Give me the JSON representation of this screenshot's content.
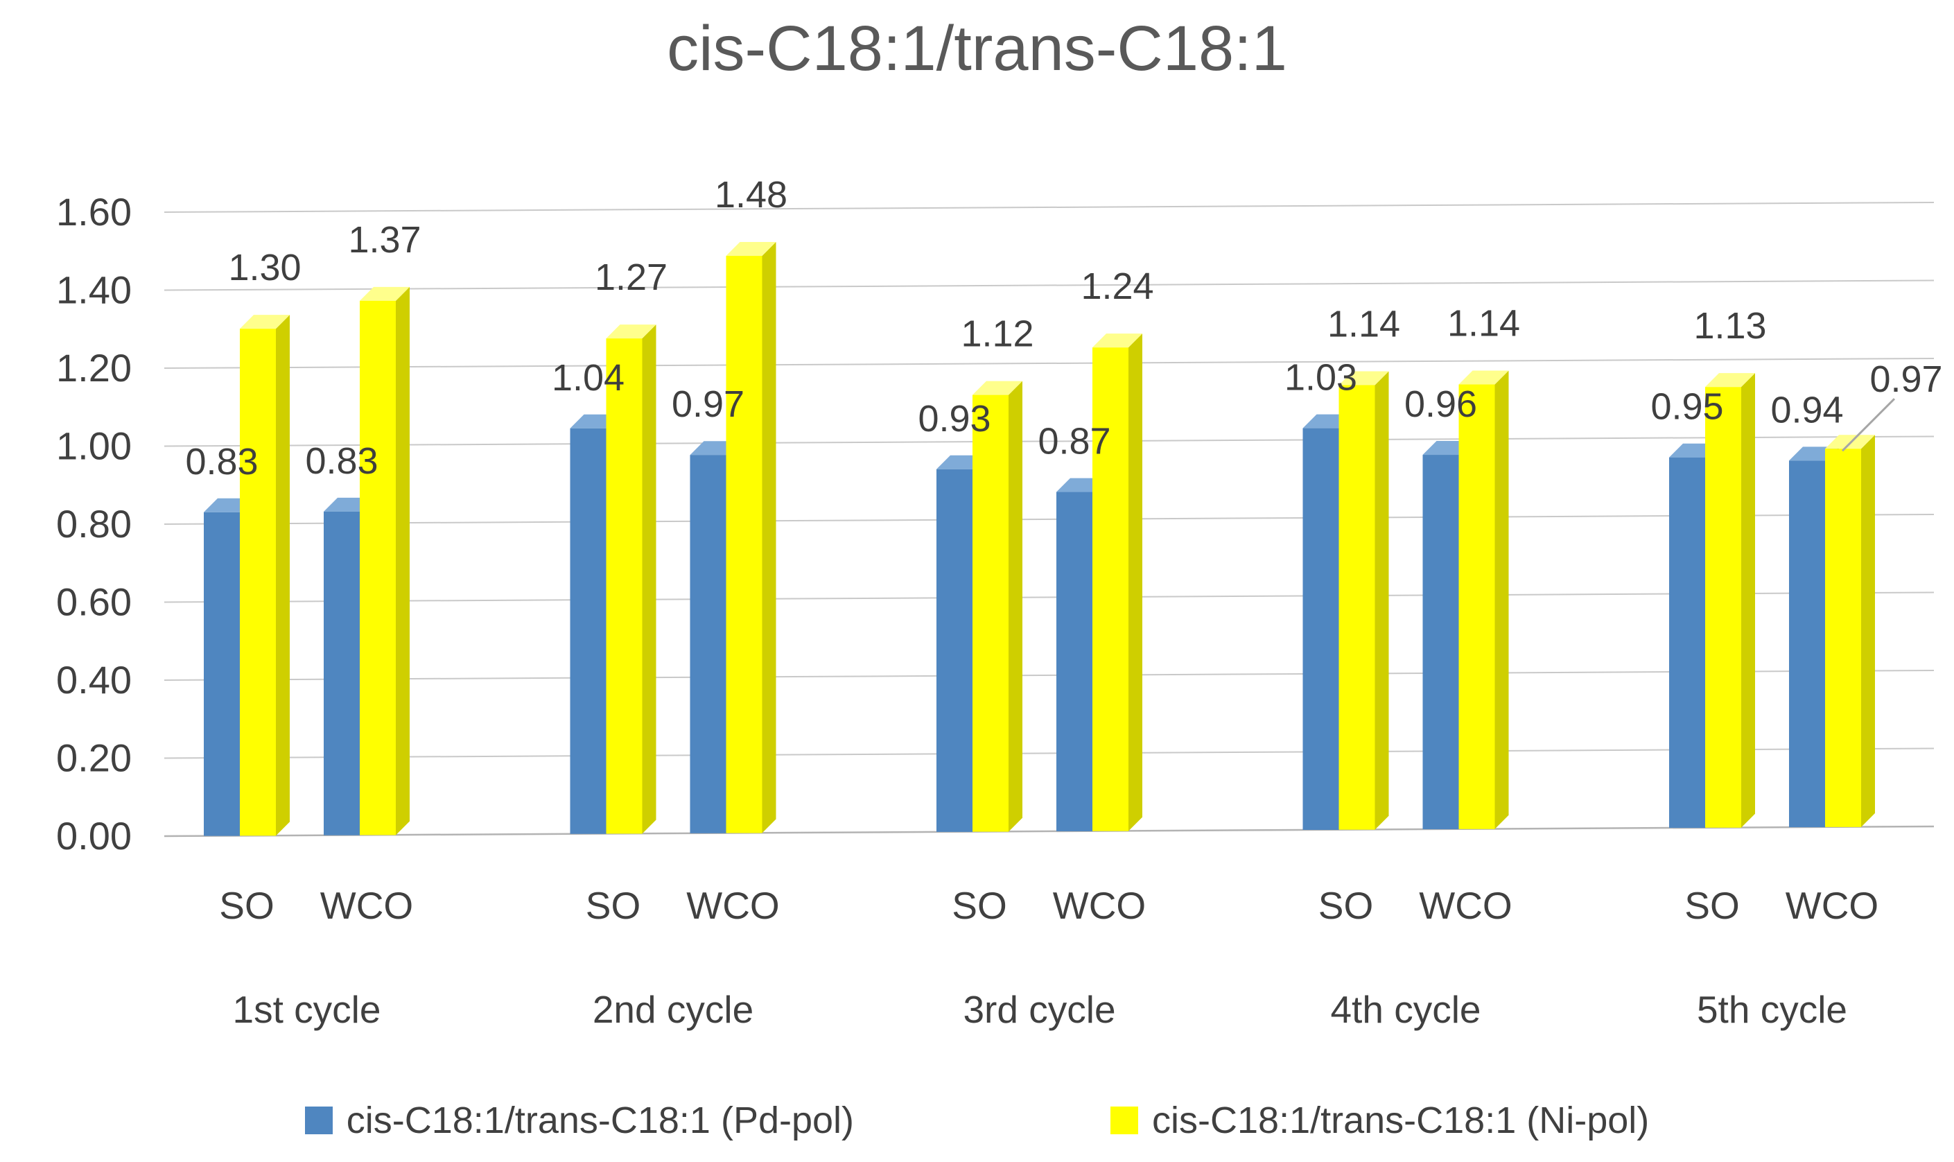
{
  "chart_data": {
    "type": "bar",
    "title": "cis-C18:1/trans-C18:1",
    "groups": [
      "1st cycle",
      "2nd cycle",
      "3rd cycle",
      "4th cycle",
      "5th cycle"
    ],
    "subgroups": [
      "SO",
      "WCO"
    ],
    "series": [
      {
        "name": "cis-C18:1/trans-C18:1 (Pd-pol)",
        "face": "#4f86c0",
        "top": "#7fabd8",
        "side": "#2f5d8c",
        "values": [
          [
            0.83,
            0.83
          ],
          [
            1.04,
            0.97
          ],
          [
            0.93,
            0.87
          ],
          [
            1.03,
            0.96
          ],
          [
            0.95,
            0.94
          ]
        ]
      },
      {
        "name": "cis-C18:1/trans-C18:1 (Ni-pol)",
        "face": "#ffff00",
        "top": "#ffff8c",
        "side": "#cfcf00",
        "values": [
          [
            1.3,
            1.37
          ],
          [
            1.27,
            1.48
          ],
          [
            1.12,
            1.24
          ],
          [
            1.14,
            1.14
          ],
          [
            1.13,
            0.97
          ]
        ]
      }
    ],
    "ylim": [
      0,
      1.6
    ],
    "ytick_step": 0.2,
    "value_label_decimals": 2,
    "callout": {
      "series": 1,
      "group": 4,
      "subgroup": 1
    },
    "gridline_color": "#c9c9c9",
    "axis_line_color": "#b3b3b3",
    "leader_line_color": "#a6a6a6",
    "text_color": "#404040",
    "title_color": "#595959",
    "grid": true,
    "legend_position": "bottom",
    "effect_3d": true
  }
}
